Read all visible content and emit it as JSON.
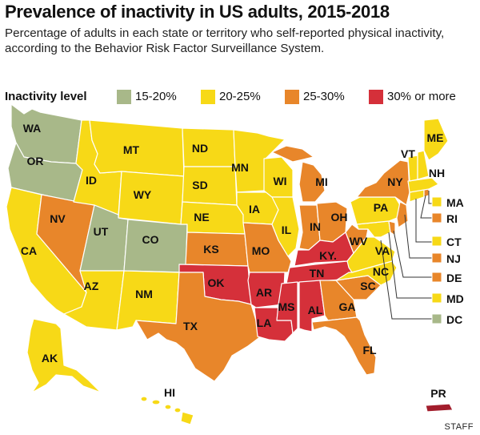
{
  "title": "Prevalence of inactivity in US adults, 2015-2018",
  "subtitle": "Percentage of adults in each state or territory who self-reported physical inactivity, according to the Behavior Risk Factor Surveillance System.",
  "legend": {
    "title": "Inactivity level",
    "items": [
      {
        "label": "15-20%",
        "color": "#a8b889"
      },
      {
        "label": "20-25%",
        "color": "#f7d917"
      },
      {
        "label": "25-30%",
        "color": "#e8862a"
      },
      {
        "label": "30% or more",
        "color": "#d5303a"
      }
    ]
  },
  "states": {
    "WA": "WA",
    "OR": "OR",
    "CA": "CA",
    "NV": "NV",
    "ID": "ID",
    "MT": "MT",
    "WY": "WY",
    "UT": "UT",
    "CO": "CO",
    "AZ": "AZ",
    "NM": "NM",
    "ND": "ND",
    "SD": "SD",
    "NE": "NE",
    "KS": "KS",
    "OK": "OK",
    "TX": "TX",
    "MN": "MN",
    "IA": "IA",
    "MO": "MO",
    "AR": "AR",
    "LA": "LA",
    "WI": "WI",
    "IL": "IL",
    "MI": "MI",
    "IN": "IN",
    "OH": "OH",
    "KY": "KY.",
    "TN": "TN",
    "MS": "MS",
    "AL": "AL",
    "GA": "GA",
    "FL": "FL",
    "SC": "SC",
    "NC": "NC",
    "VA": "VA",
    "WV": "WV",
    "PA": "PA",
    "NY": "NY",
    "VT": "VT",
    "ME": "ME",
    "NH": "NH",
    "AK": "AK",
    "HI": "HI",
    "PR": "PR"
  },
  "small_states": [
    {
      "label": "MA",
      "color": "#f7d917"
    },
    {
      "label": "RI",
      "color": "#e8862a"
    },
    {
      "label": "CT",
      "color": "#f7d917"
    },
    {
      "label": "NJ",
      "color": "#e8862a"
    },
    {
      "label": "DE",
      "color": "#e8862a"
    },
    {
      "label": "MD",
      "color": "#f7d917"
    },
    {
      "label": "DC",
      "color": "#a8b889"
    }
  ],
  "credit": "STAFF"
}
